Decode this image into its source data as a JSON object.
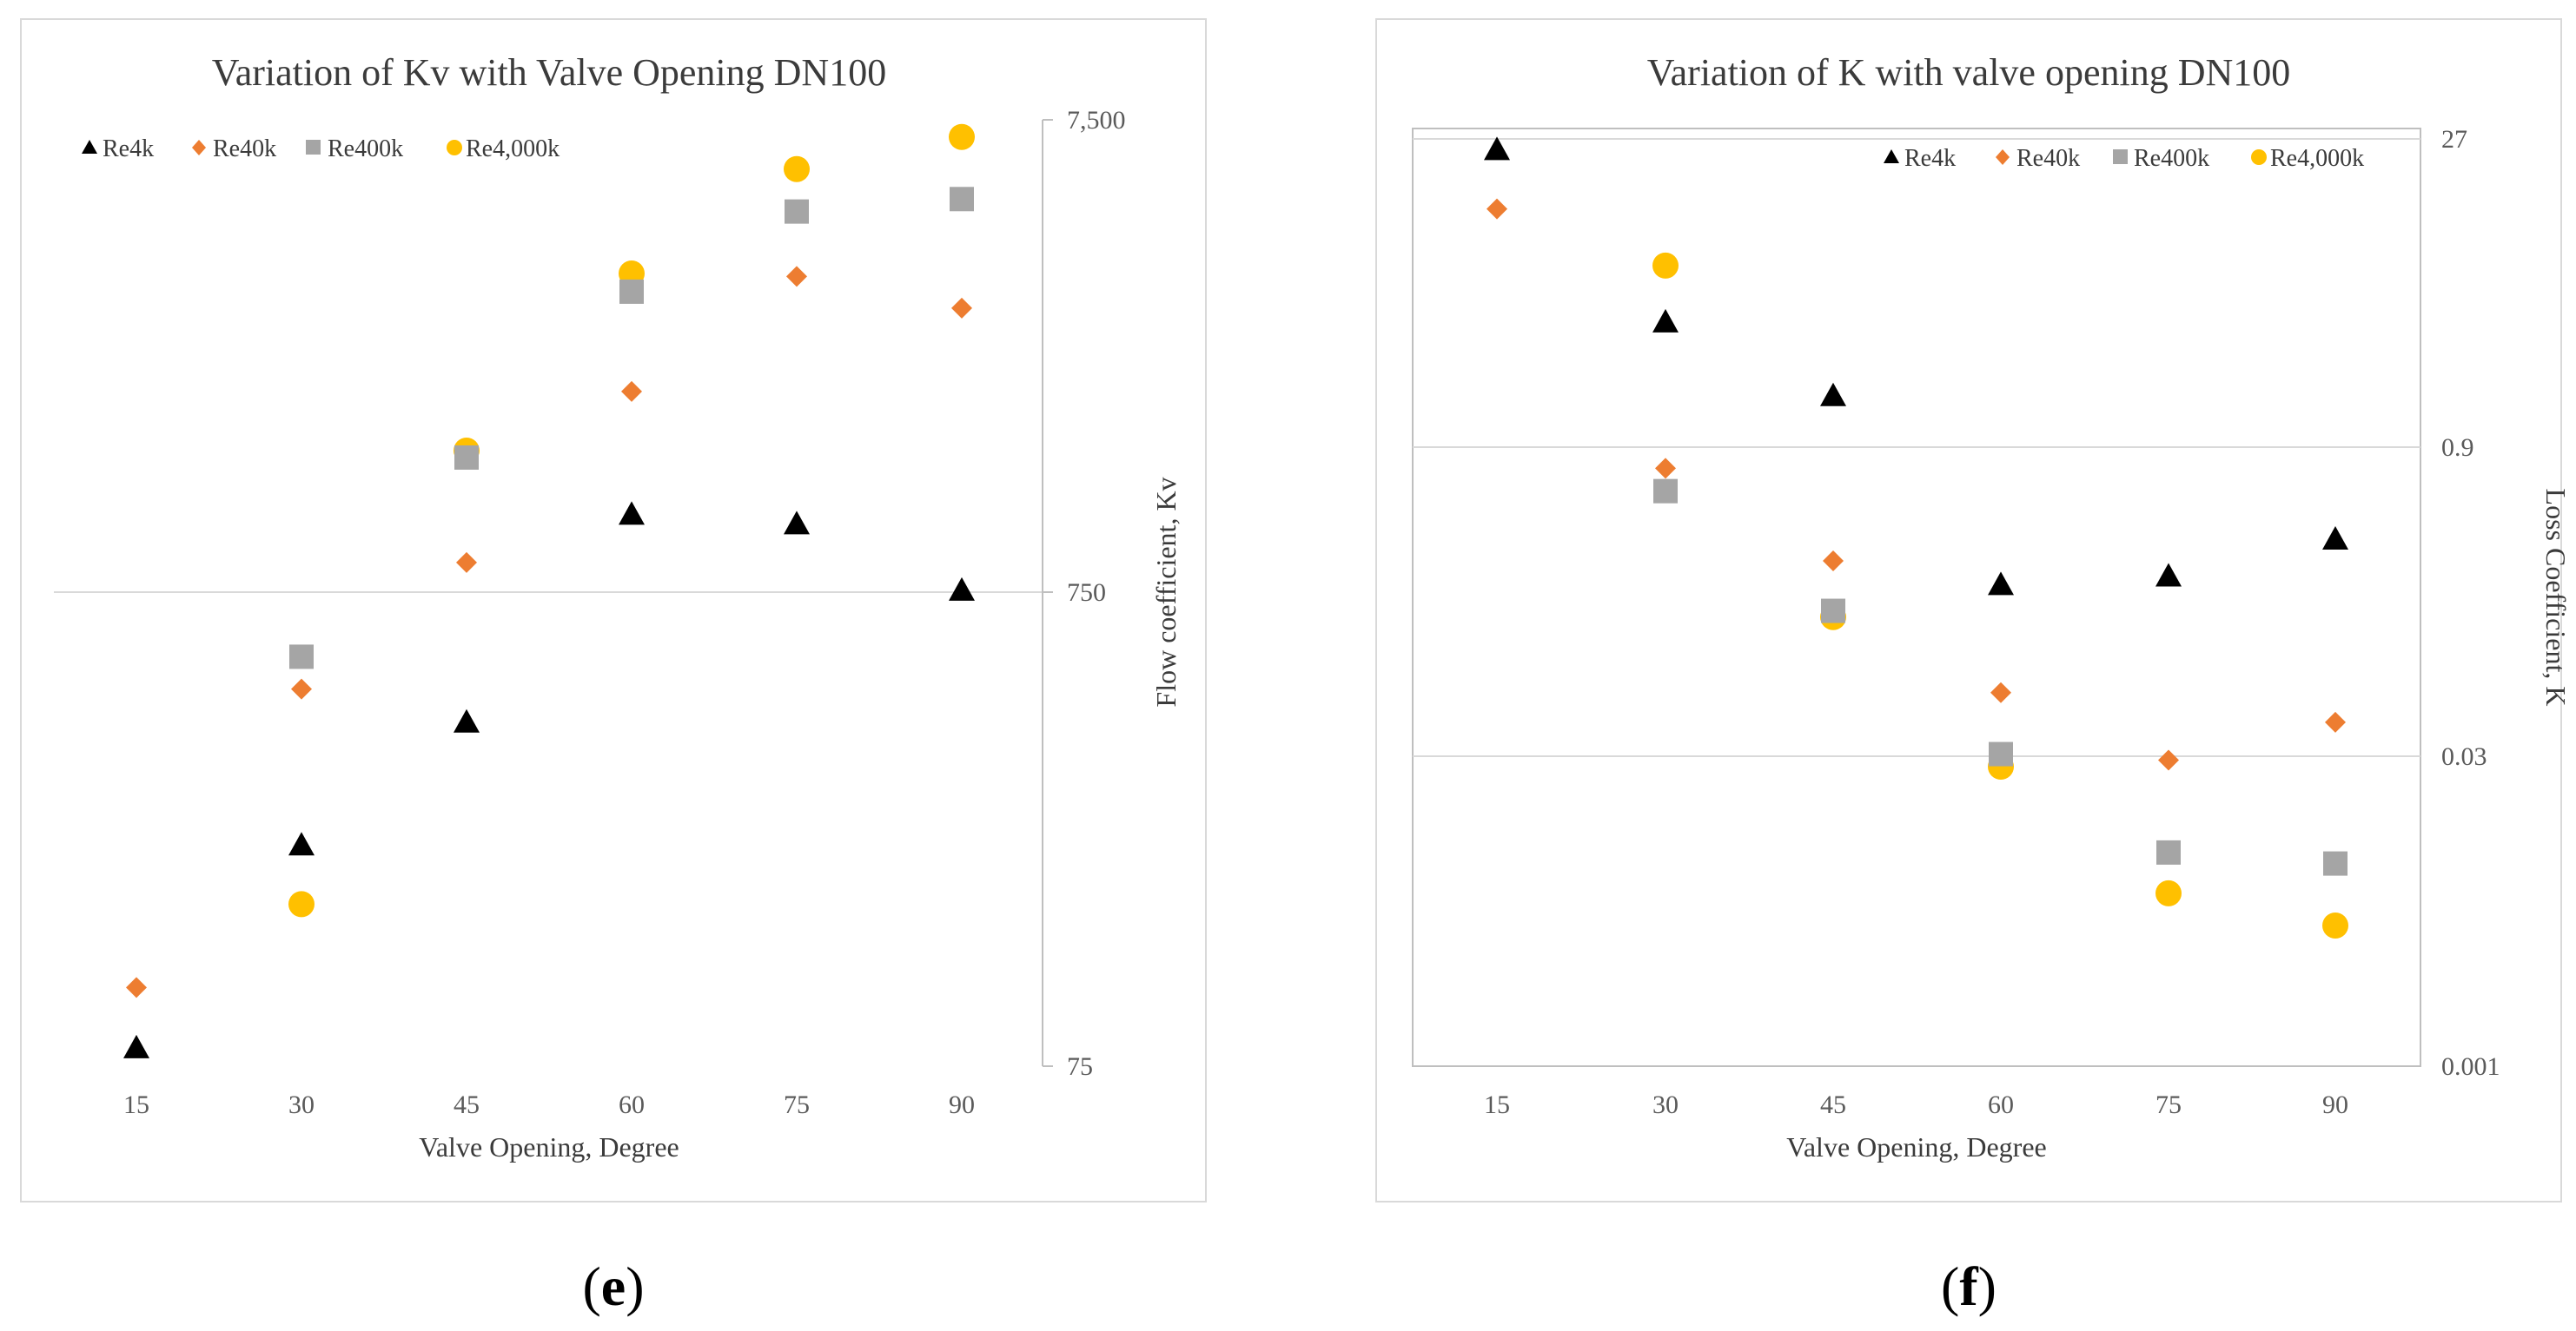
{
  "colors": {
    "Re4k": "#000000",
    "Re40k": "#ED7D31",
    "Re400k": "#A5A5A5",
    "Re4,000k": "#FFC000",
    "grid": "#d9d9d9",
    "frame": "#d9d9d9"
  },
  "chart_data": [
    {
      "id": "e",
      "type": "scatter",
      "panel_label": {
        "open": "(",
        "letter": "e",
        "close": ")"
      },
      "title": "Variation of Kv with Valve Opening DN100",
      "xlabel": "Valve Opening, Degree",
      "ylabel": "Flow coefficient, Kv",
      "y_scale": "log",
      "y_axis_side": "right",
      "ylim": [
        75,
        7500
      ],
      "y_ticks": [
        75,
        750,
        7500
      ],
      "y_tick_labels": [
        "75",
        "750",
        "7,500"
      ],
      "categories": [
        15,
        30,
        45,
        60,
        75,
        90
      ],
      "category_labels": [
        "15",
        "30",
        "45",
        "60",
        "75",
        "90"
      ],
      "legend_position": "top-left",
      "series": [
        {
          "name": "Re4k",
          "marker": "triangle",
          "values": [
            82,
            220,
            400,
            1100,
            1050,
            760
          ]
        },
        {
          "name": "Re40k",
          "marker": "diamond",
          "values": [
            110,
            470,
            870,
            2000,
            3500,
            3000
          ]
        },
        {
          "name": "Re400k",
          "marker": "square",
          "values": [
            null,
            550,
            1450,
            3250,
            4800,
            5100
          ]
        },
        {
          "name": "Re4,000k",
          "marker": "circle",
          "values": [
            null,
            165,
            1500,
            3550,
            5900,
            6900
          ]
        }
      ]
    },
    {
      "id": "f",
      "type": "scatter",
      "panel_label": {
        "open": "(",
        "letter": "f",
        "close": ")"
      },
      "title": "Variation of K with valve opening DN100",
      "xlabel": "Valve Opening, Degree",
      "ylabel": "Loss Coefficient, K",
      "y_scale": "log",
      "y_axis_side": "right",
      "ylim": [
        0.001,
        27
      ],
      "y_ticks": [
        0.001,
        0.03,
        0.9,
        27
      ],
      "y_tick_labels": [
        "0.001",
        "0.03",
        "0.9",
        "27"
      ],
      "categories": [
        15,
        30,
        45,
        60,
        75,
        90
      ],
      "category_labels": [
        "15",
        "30",
        "45",
        "60",
        "75",
        "90"
      ],
      "legend_position": "top-right",
      "series": [
        {
          "name": "Re4k",
          "marker": "triangle",
          "values": [
            24,
            3.6,
            1.6,
            0.2,
            0.22,
            0.33
          ]
        },
        {
          "name": "Re40k",
          "marker": "diamond",
          "values": [
            12.5,
            0.72,
            0.26,
            0.061,
            0.029,
            0.044
          ]
        },
        {
          "name": "Re400k",
          "marker": "square",
          "values": [
            null,
            0.56,
            0.15,
            0.031,
            0.0105,
            0.0093
          ]
        },
        {
          "name": "Re4,000k",
          "marker": "circle",
          "values": [
            null,
            6.7,
            0.14,
            0.027,
            0.0067,
            0.0047
          ]
        }
      ]
    }
  ]
}
